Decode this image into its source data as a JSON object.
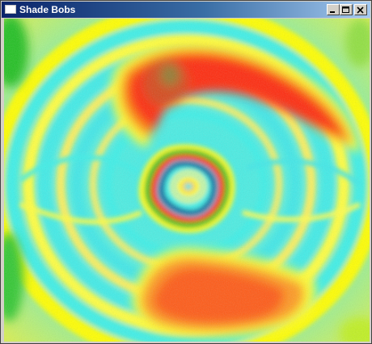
{
  "window": {
    "title": "Shade Bobs",
    "icon": "app-window-icon",
    "controls": [
      "minimize-icon",
      "maximize-icon",
      "close-icon"
    ]
  },
  "colors": {
    "title_gradient_start": "#0a246a",
    "title_gradient_end": "#a6caf0",
    "palette": [
      "#ffff00",
      "#3ef0e8",
      "#ff2a10",
      "#ff8c10",
      "#20c020",
      "#0a2a8a"
    ]
  }
}
